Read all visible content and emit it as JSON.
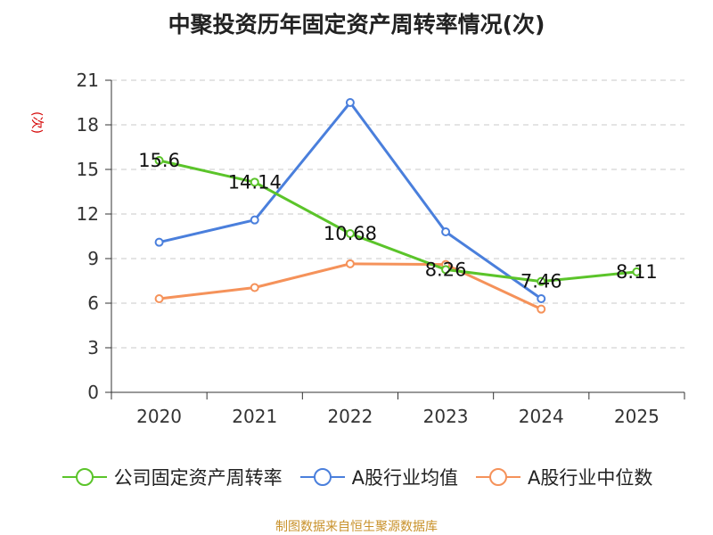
{
  "chart_data": {
    "type": "line",
    "title": "中聚投资历年固定资产周转率情况(次)",
    "unit_label": "(次)",
    "categories": [
      "2020",
      "2021",
      "2022",
      "2023",
      "2024",
      "2025"
    ],
    "y_ticks": [
      "0",
      "3",
      "6",
      "9",
      "12",
      "15",
      "18",
      "21"
    ],
    "ylim": [
      0,
      21
    ],
    "grid": true,
    "legend_position": "bottom",
    "series": [
      {
        "name": "公司固定资产周转率",
        "color": "#5bc42a",
        "values": [
          15.6,
          14.14,
          10.68,
          8.26,
          7.46,
          8.11
        ],
        "labels": [
          "15.6",
          "14.14",
          "10.68",
          "8.26",
          "7.46",
          "8.11"
        ]
      },
      {
        "name": "A股行业均值",
        "color": "#4a7fdc",
        "values": [
          10.1,
          11.6,
          19.5,
          10.8,
          6.3,
          null
        ]
      },
      {
        "name": "A股行业中位数",
        "color": "#f5925a",
        "values": [
          6.3,
          7.05,
          8.65,
          8.6,
          5.6,
          null
        ]
      }
    ]
  },
  "source": "制图数据来自恒生聚源数据库"
}
